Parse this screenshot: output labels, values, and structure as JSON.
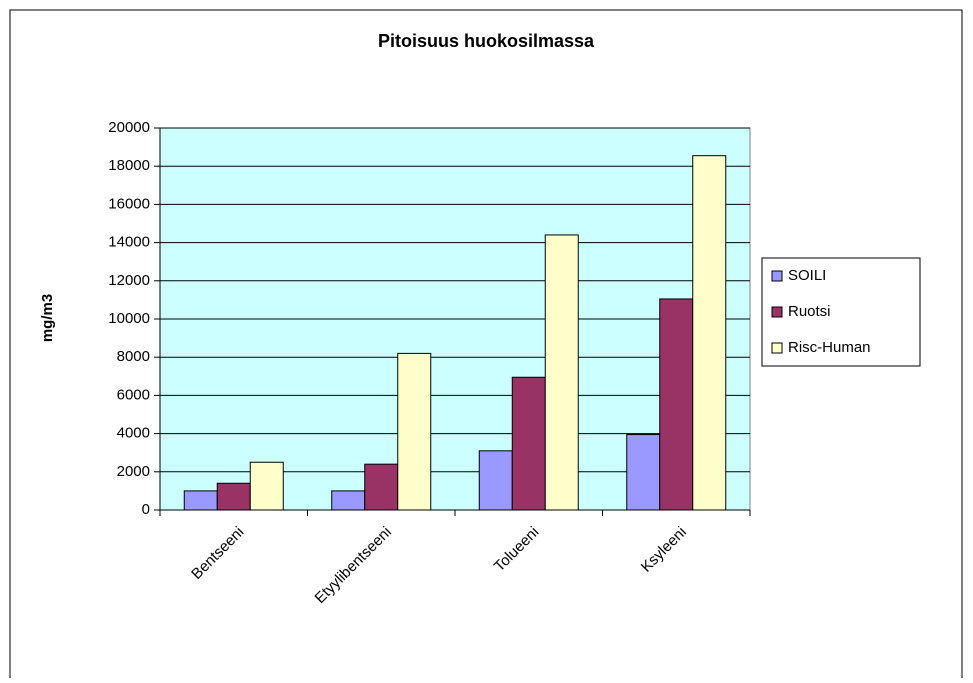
{
  "chart_data": {
    "type": "bar",
    "title": "Pitoisuus huokosilmassa",
    "y_label": "mg/m3",
    "categories": [
      "Bentseeni",
      "Etyylibentseeni",
      "Tolueeni",
      "Ksyleeni"
    ],
    "series": [
      {
        "name": "SOILI",
        "color": "#9999ff",
        "values": [
          1000,
          1000,
          3100,
          3950
        ]
      },
      {
        "name": "Ruotsi",
        "color": "#993366",
        "values": [
          1400,
          2400,
          6950,
          11050
        ]
      },
      {
        "name": "Risc-Human",
        "color": "#ffffcc",
        "values": [
          2500,
          8200,
          14400,
          18550
        ]
      }
    ],
    "ylim": [
      0,
      20000
    ],
    "yticks": [
      0,
      2000,
      4000,
      6000,
      8000,
      10000,
      12000,
      14000,
      16000,
      18000,
      20000
    ],
    "grid": true,
    "legend": "right",
    "plot_background": "#ccffff"
  }
}
